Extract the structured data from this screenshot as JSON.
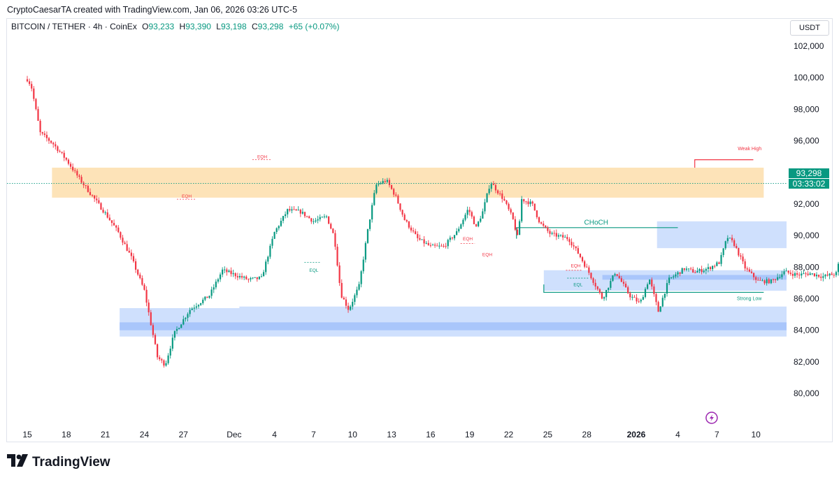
{
  "header": {
    "created_by": "CryptoCaesarTA created with TradingView.com, Jan 06, 2026 03:26 UTC-5"
  },
  "legend": {
    "symbol": "BITCOIN / TETHER · 4h · CoinEx",
    "o_label": "O",
    "o": "93,233",
    "h_label": "H",
    "h": "93,390",
    "l_label": "L",
    "l": "93,198",
    "c_label": "C",
    "c": "93,298",
    "change": "+65 (+0.07%)"
  },
  "toolbar": {
    "currency": "USDT"
  },
  "price_tag": {
    "price": "93,298",
    "countdown": "03:33:02"
  },
  "footer": {
    "brand": "TradingView"
  },
  "colors": {
    "up": "#089981",
    "down": "#f23645",
    "supply_zone": "#fde3b8",
    "demand_zone": "#cfe0fd",
    "demand_zone_dark": "#a9c6fb",
    "structure": "#089981",
    "weak_high": "#f23645"
  },
  "chart_data": {
    "type": "candlestick",
    "title": "",
    "xlabel": "",
    "ylabel": "",
    "y_axis_ticks": [
      "102,000",
      "100,000",
      "98,000",
      "96,000",
      "94,000",
      "92,000",
      "90,000",
      "88,000",
      "86,000",
      "84,000",
      "82,000",
      "80,000"
    ],
    "x_axis_ticks": [
      "15",
      "18",
      "21",
      "24",
      "27",
      "Dec",
      "4",
      "7",
      "10",
      "13",
      "16",
      "19",
      "22",
      "25",
      "28",
      "2026",
      "4",
      "7",
      "10"
    ],
    "ylim": [
      78800,
      103000
    ],
    "interval": "4h",
    "price_path_waypoints": [
      [
        0,
        99900
      ],
      [
        0.3,
        99500
      ],
      [
        1,
        96500
      ],
      [
        2,
        95800
      ],
      [
        3,
        94800
      ],
      [
        4,
        93600
      ],
      [
        5,
        92500
      ],
      [
        6,
        91400
      ],
      [
        7,
        90200
      ],
      [
        8,
        88600
      ],
      [
        9,
        86500
      ],
      [
        10,
        82300
      ],
      [
        10.6,
        81800
      ],
      [
        11.3,
        83800
      ],
      [
        12.5,
        85300
      ],
      [
        14,
        86200
      ],
      [
        15,
        87800
      ],
      [
        17,
        87200
      ],
      [
        18,
        87300
      ],
      [
        19,
        90200
      ],
      [
        20,
        91600
      ],
      [
        21,
        91500
      ],
      [
        22,
        90900
      ],
      [
        23,
        91200
      ],
      [
        23.6,
        89900
      ],
      [
        24.1,
        86300
      ],
      [
        24.7,
        85300
      ],
      [
        25.5,
        86800
      ],
      [
        26.2,
        90500
      ],
      [
        26.8,
        93200
      ],
      [
        27.6,
        93500
      ],
      [
        28.3,
        92500
      ],
      [
        29,
        91000
      ],
      [
        30,
        89800
      ],
      [
        31,
        89300
      ],
      [
        32,
        89300
      ],
      [
        33,
        90200
      ],
      [
        33.9,
        91700
      ],
      [
        34.5,
        90500
      ],
      [
        35,
        91500
      ],
      [
        35.6,
        93400
      ],
      [
        36.6,
        92300
      ],
      [
        37.3,
        91100
      ],
      [
        37.7,
        89800
      ],
      [
        38,
        92300
      ],
      [
        38.8,
        92000
      ],
      [
        39.4,
        90800
      ],
      [
        40.2,
        90100
      ],
      [
        41.6,
        89800
      ],
      [
        42.4,
        88800
      ],
      [
        43.2,
        87600
      ],
      [
        44.2,
        86000
      ],
      [
        45.2,
        87700
      ],
      [
        46.3,
        86200
      ],
      [
        47.1,
        85700
      ],
      [
        47.8,
        87300
      ],
      [
        48.5,
        85200
      ],
      [
        49.3,
        87200
      ],
      [
        50.5,
        87900
      ],
      [
        51.3,
        87700
      ],
      [
        52.3,
        87900
      ],
      [
        53.2,
        88300
      ],
      [
        53.8,
        89900
      ],
      [
        54.3,
        89500
      ],
      [
        55.2,
        87900
      ],
      [
        56.2,
        87100
      ],
      [
        57.2,
        87100
      ],
      [
        58.2,
        87700
      ],
      [
        59.2,
        87500
      ],
      [
        60.1,
        87600
      ],
      [
        61.2,
        87400
      ],
      [
        62.2,
        87600
      ],
      [
        62.8,
        90000
      ],
      [
        63.5,
        88300
      ],
      [
        64.2,
        87300
      ],
      [
        65.2,
        87900
      ],
      [
        66.2,
        88000
      ],
      [
        67.2,
        87500
      ],
      [
        68.2,
        88200
      ],
      [
        69.2,
        88300
      ],
      [
        70.2,
        89600
      ],
      [
        71.2,
        90200
      ],
      [
        72.2,
        90500
      ],
      [
        72.8,
        91800
      ],
      [
        73.4,
        91100
      ],
      [
        74.2,
        92300
      ],
      [
        74.9,
        93400
      ],
      [
        75.5,
        94000
      ],
      [
        76.1,
        93300
      ],
      [
        76.5,
        93250
      ]
    ],
    "demand_zones": [
      {
        "y_bottom": 83600,
        "y_top": 85400
      },
      {
        "y_bottom": 89200,
        "y_top": 90900
      },
      {
        "y_bottom": 86500,
        "y_top": 87800
      }
    ],
    "supply_zone": {
      "y_bottom": 92400,
      "y_top": 94300
    },
    "structure_levels": [
      {
        "label": "CHoCH",
        "price": 90500
      },
      {
        "label": "Weak High",
        "price": 94800
      },
      {
        "label": "Strong Low",
        "price": 86400
      }
    ],
    "annotations": [
      "EQH",
      "EQH",
      "EQL",
      "EQH",
      "EQH",
      "EQH",
      "EQL"
    ],
    "last_price": 93298
  }
}
